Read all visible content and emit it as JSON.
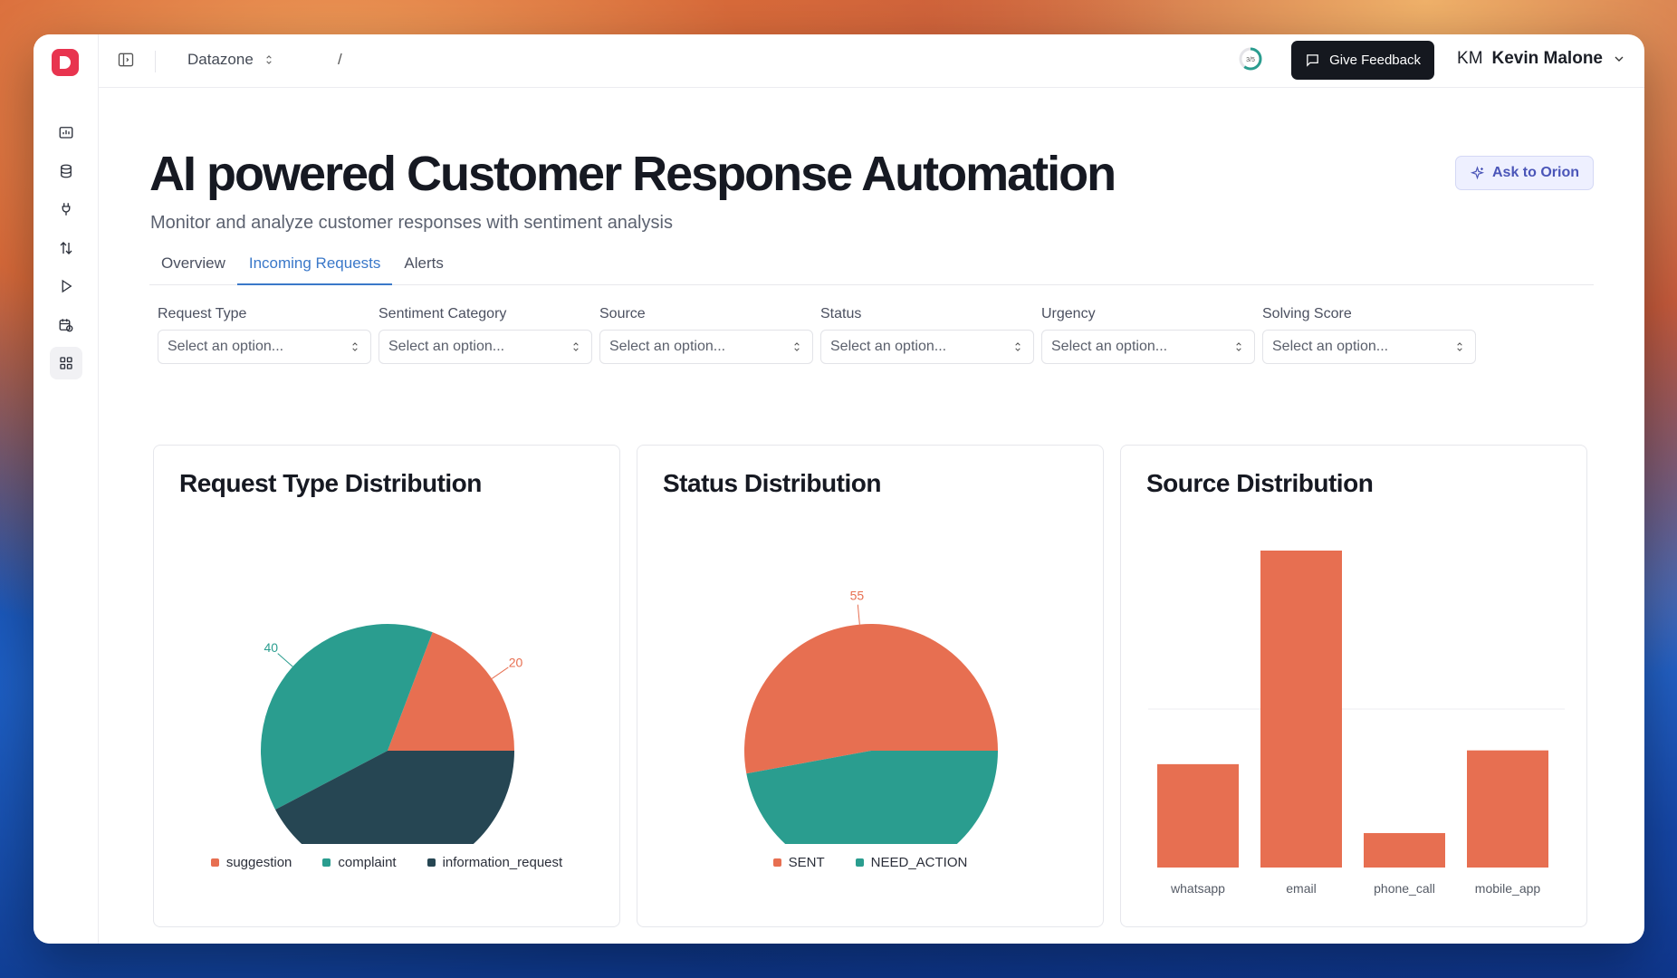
{
  "header": {
    "workspace": "Datazone",
    "breadcrumb_sep": "/",
    "progress_label": "3/5",
    "feedback_label": "Give Feedback",
    "user_initials": "KM",
    "user_name": "Kevin Malone"
  },
  "page": {
    "title": "AI powered Customer Response Automation",
    "subtitle": "Monitor and analyze customer responses with sentiment analysis",
    "ask_label": "Ask to Orion"
  },
  "tabs": [
    {
      "label": "Overview"
    },
    {
      "label": "Incoming Requests"
    },
    {
      "label": "Alerts"
    }
  ],
  "filters": [
    {
      "label": "Request Type",
      "placeholder": "Select an option..."
    },
    {
      "label": "Sentiment Category",
      "placeholder": "Select an option..."
    },
    {
      "label": "Source",
      "placeholder": "Select an option..."
    },
    {
      "label": "Status",
      "placeholder": "Select an option..."
    },
    {
      "label": "Urgency",
      "placeholder": "Select an option..."
    },
    {
      "label": "Solving Score",
      "placeholder": "Select an option..."
    }
  ],
  "colors": {
    "orange": "#e76f51",
    "teal": "#2a9d8f",
    "navy": "#264653",
    "accent": "#3a78c9"
  },
  "chart_data": [
    {
      "type": "pie",
      "title": "Request Type Distribution",
      "categories": [
        "suggestion",
        "complaint",
        "information_request"
      ],
      "values": [
        20,
        40,
        44
      ],
      "colors": [
        "#e76f51",
        "#2a9d8f",
        "#264653"
      ]
    },
    {
      "type": "pie",
      "title": "Status Distribution",
      "categories": [
        "SENT",
        "NEED_ACTION"
      ],
      "values": [
        55,
        49
      ],
      "colors": [
        "#e76f51",
        "#2a9d8f"
      ]
    },
    {
      "type": "bar",
      "title": "Source Distribution",
      "categories": [
        "whatsapp",
        "email",
        "phone_call",
        "mobile_app"
      ],
      "values": [
        15,
        46,
        5,
        17
      ],
      "ylim": [
        0,
        46
      ],
      "color": "#e76f51"
    }
  ]
}
